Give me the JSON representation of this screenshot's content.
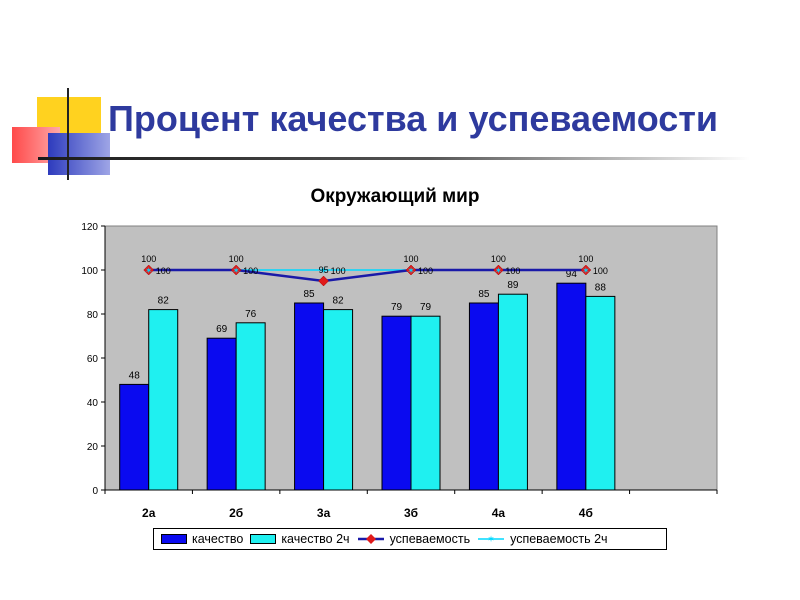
{
  "slide": {
    "title": "Процент качества и успеваемости"
  },
  "colors": {
    "accent_title": "#2e3a9e",
    "plot_bg": "#c0c0c0",
    "series_kachestvo": "#0a0af0",
    "series_kachestvo_2ch": "#1ff0f0",
    "series_uspevaemost": "#1a1aa8",
    "series_uspevaemost_marker": "#e01a1a",
    "series_uspevaemost_2ch": "#00d8ff"
  },
  "chart_data": {
    "type": "bar",
    "title": "Окружающий мир",
    "categories": [
      "2а",
      "2б",
      "3а",
      "3б",
      "4а",
      "4б",
      ""
    ],
    "ylim": [
      0,
      120
    ],
    "yticks": [
      0,
      20,
      40,
      60,
      80,
      100,
      120
    ],
    "grid": false,
    "legend_position": "bottom",
    "series": [
      {
        "name": "качество",
        "kind": "bar",
        "values": [
          48,
          69,
          85,
          79,
          85,
          94,
          null
        ]
      },
      {
        "name": "качество 2ч",
        "kind": "bar",
        "values": [
          82,
          76,
          82,
          79,
          89,
          88,
          null
        ]
      },
      {
        "name": "успеваемость",
        "kind": "line",
        "values": [
          100,
          100,
          95,
          100,
          100,
          100,
          null
        ]
      },
      {
        "name": "успеваемость 2ч",
        "kind": "line",
        "values": [
          100,
          100,
          100,
          100,
          100,
          100,
          null
        ]
      }
    ]
  }
}
